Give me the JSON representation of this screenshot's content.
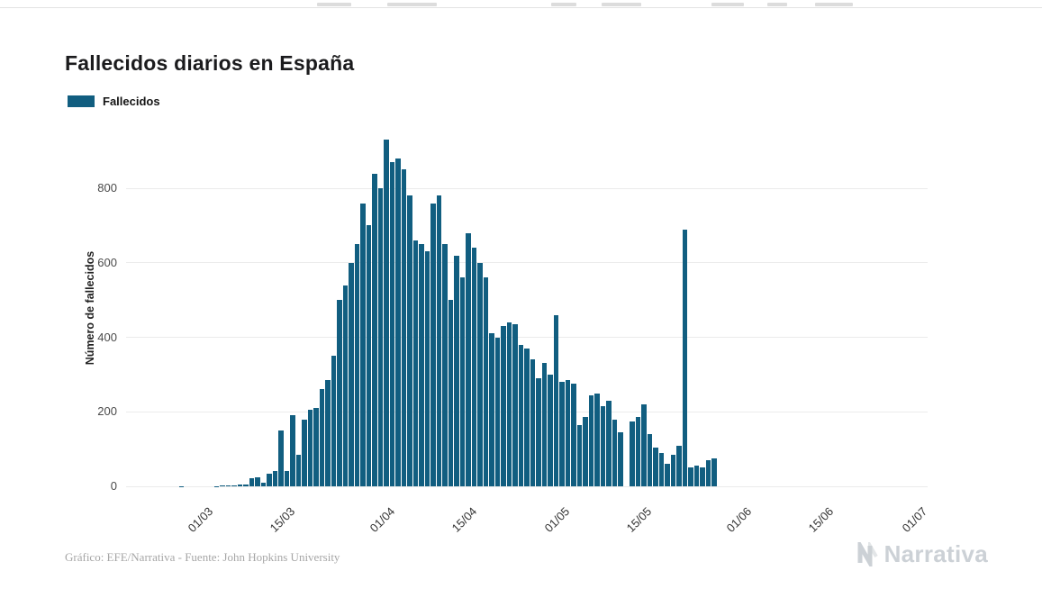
{
  "page": {
    "title": "Fallecidos diarios en España",
    "footer_credit": "Gráfico: EFE/Narrativa - Fuente: John Hopkins University",
    "brand": "Narrativa"
  },
  "legend": {
    "label": "Fallecidos"
  },
  "colors": {
    "bar": "#115e80",
    "grid": "#ebebeb",
    "footer_text": "#a6a6a6",
    "brand_gray": "#ccd1d6"
  },
  "chart_data": {
    "type": "bar",
    "title": "Fallecidos diarios en España",
    "series_name": "Fallecidos",
    "xlabel": "",
    "ylabel": "Número de fallecidos",
    "ylim": [
      0,
      950
    ],
    "yticks": [
      0,
      200,
      400,
      600,
      800
    ],
    "grid": true,
    "legend_position": "top-left",
    "x_tick_labels": [
      "01/03",
      "15/03",
      "01/04",
      "15/04",
      "01/05",
      "15/05",
      "01/06",
      "15/06",
      "01/07"
    ],
    "bar_color": "#115e80",
    "dates": [
      "16/02",
      "17/02",
      "18/02",
      "19/02",
      "20/02",
      "21/02",
      "22/02",
      "23/02",
      "24/02",
      "25/02",
      "26/02",
      "27/02",
      "28/02",
      "29/02",
      "01/03",
      "02/03",
      "03/03",
      "04/03",
      "05/03",
      "06/03",
      "07/03",
      "08/03",
      "09/03",
      "10/03",
      "11/03",
      "12/03",
      "13/03",
      "14/03",
      "15/03",
      "16/03",
      "17/03",
      "18/03",
      "19/03",
      "20/03",
      "21/03",
      "22/03",
      "23/03",
      "24/03",
      "25/03",
      "26/03",
      "27/03",
      "28/03",
      "29/03",
      "30/03",
      "31/03",
      "01/04",
      "02/04",
      "03/04",
      "04/04",
      "05/04",
      "06/04",
      "07/04",
      "08/04",
      "09/04",
      "10/04",
      "11/04",
      "12/04",
      "13/04",
      "14/04",
      "15/04",
      "16/04",
      "17/04",
      "18/04",
      "19/04",
      "20/04",
      "21/04",
      "22/04",
      "23/04",
      "24/04",
      "25/04",
      "26/04",
      "27/04",
      "28/04",
      "29/04",
      "30/04",
      "01/05",
      "02/05",
      "03/05",
      "04/05",
      "05/05",
      "06/05",
      "07/05",
      "08/05",
      "09/05",
      "10/05",
      "11/05",
      "12/05",
      "13/05",
      "14/05",
      "15/05",
      "16/05",
      "17/05",
      "18/05",
      "19/05",
      "20/05",
      "21/05",
      "22/05",
      "23/05",
      "24/05",
      "25/05",
      "26/05",
      "27/05",
      "28/05",
      "29/05",
      "30/05",
      "31/05",
      "01/06",
      "02/06",
      "03/06",
      "04/06",
      "05/06",
      "06/06",
      "07/06",
      "08/06",
      "09/06",
      "10/06",
      "11/06",
      "12/06",
      "13/06",
      "14/06",
      "15/06",
      "16/06",
      "17/06",
      "18/06",
      "19/06",
      "20/06",
      "21/06",
      "22/06",
      "23/06",
      "24/06",
      "25/06",
      "26/06",
      "27/06",
      "28/06",
      "29/06",
      "30/06",
      "01/07"
    ],
    "values": [
      0,
      0,
      0,
      0,
      0,
      0,
      0,
      0,
      0,
      1,
      0,
      0,
      0,
      0,
      0,
      1,
      2,
      3,
      2,
      4,
      5,
      22,
      25,
      10,
      35,
      40,
      150,
      40,
      190,
      85,
      180,
      205,
      210,
      260,
      285,
      350,
      500,
      540,
      600,
      650,
      760,
      700,
      840,
      800,
      930,
      870,
      880,
      850,
      780,
      660,
      650,
      630,
      760,
      780,
      650,
      500,
      620,
      560,
      680,
      640,
      600,
      560,
      410,
      400,
      430,
      440,
      435,
      380,
      370,
      340,
      290,
      330,
      300,
      460,
      280,
      285,
      275,
      165,
      185,
      245,
      250,
      215,
      230,
      180,
      145,
      0,
      175,
      185,
      220,
      140,
      105,
      90,
      60,
      85,
      110,
      690,
      50,
      55,
      50,
      70,
      75,
      0,
      0,
      0,
      0,
      0,
      0,
      0,
      0,
      0,
      0,
      0,
      0,
      0,
      0,
      0,
      0,
      0,
      0,
      0,
      0,
      0,
      0,
      0,
      0,
      0,
      0,
      0,
      0,
      0,
      0,
      0,
      0,
      0,
      0,
      0,
      0
    ]
  }
}
